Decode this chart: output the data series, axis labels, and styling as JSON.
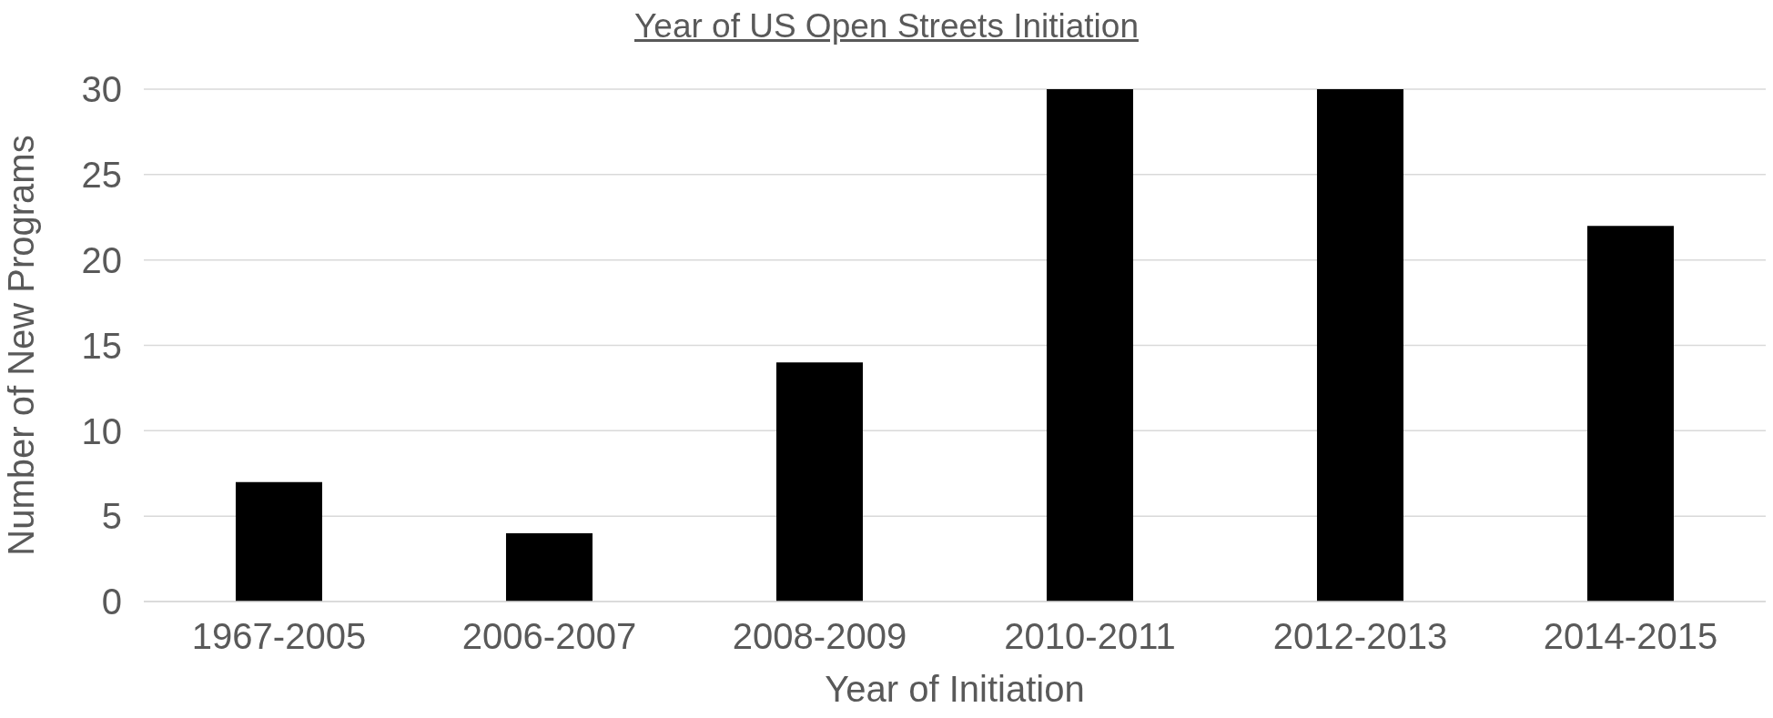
{
  "chart_data": {
    "type": "bar",
    "title": "Year of US Open Streets Initiation",
    "xlabel": "Year of Initiation",
    "ylabel": "Number of New Programs",
    "categories": [
      "1967-2005",
      "2006-2007",
      "2008-2009",
      "2010-2011",
      "2012-2013",
      "2014-2015"
    ],
    "values": [
      7,
      4,
      14,
      30,
      30,
      22
    ],
    "color": "#000000",
    "ylim": [
      0,
      30
    ],
    "yticks": [
      0,
      5,
      10,
      15,
      20,
      25,
      30
    ],
    "grid": "y"
  }
}
